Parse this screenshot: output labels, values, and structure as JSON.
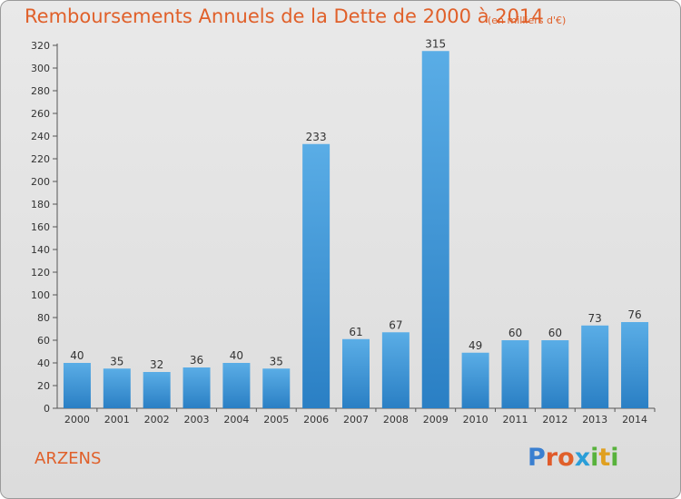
{
  "header": {
    "title": "Remboursements Annuels de la Dette de 2000 à 2014",
    "unit": "(en milliers d'€)"
  },
  "footer": {
    "place": "ARZENS",
    "logo_text": "Proxiti"
  },
  "colors": {
    "title": "#e0602a",
    "bar_top": "#5aade6",
    "bar_bottom": "#2a7fc4",
    "logo_letters": [
      "#3a7fd0",
      "#e05a2a",
      "#e0602a",
      "#2a9ed8",
      "#58b23c",
      "#e0a020",
      "#58b23c"
    ]
  },
  "chart_data": {
    "type": "bar",
    "title": "Remboursements Annuels de la Dette de 2000 à 2014",
    "subtitle": "(en milliers d'€)",
    "categories": [
      "2000",
      "2001",
      "2002",
      "2003",
      "2004",
      "2005",
      "2006",
      "2007",
      "2008",
      "2009",
      "2010",
      "2011",
      "2012",
      "2013",
      "2014"
    ],
    "values": [
      40,
      35,
      32,
      36,
      40,
      35,
      233,
      61,
      67,
      315,
      49,
      60,
      60,
      73,
      76
    ],
    "ylim": [
      0,
      320
    ],
    "yticks": [
      0,
      20,
      40,
      60,
      80,
      100,
      120,
      140,
      160,
      180,
      200,
      220,
      240,
      260,
      280,
      300,
      320
    ],
    "grid": false,
    "data_labels": true
  }
}
